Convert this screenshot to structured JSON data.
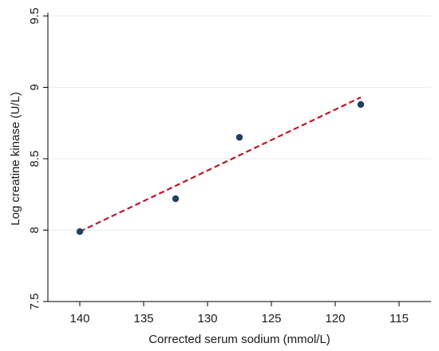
{
  "chart_data": {
    "type": "scatter",
    "xlabel": "Corrected serum sodium (mmol/L)",
    "ylabel": "Log creatine kinase (U/L)",
    "x_reversed": true,
    "xlim": [
      142.5,
      112.5
    ],
    "ylim": [
      7.5,
      9.5
    ],
    "x_ticks": [
      140,
      135,
      130,
      125,
      120,
      115
    ],
    "y_ticks": [
      7.5,
      8,
      8.5,
      9,
      9.5
    ],
    "grid": "horizontal",
    "series": [
      {
        "points": [
          {
            "x": 140,
            "y": 7.99
          },
          {
            "x": 132.5,
            "y": 8.22
          },
          {
            "x": 127.5,
            "y": 8.65
          },
          {
            "x": 118,
            "y": 8.88
          }
        ]
      },
      {
        "type": "line",
        "style": "dashed",
        "points": [
          {
            "x": 140,
            "y": 7.99
          },
          {
            "x": 118,
            "y": 8.93
          }
        ]
      }
    ],
    "colors": {
      "points": "#1f3f66",
      "fit_line": "#c0142a",
      "grid": "#e3ecef",
      "axis": "#000000"
    }
  }
}
